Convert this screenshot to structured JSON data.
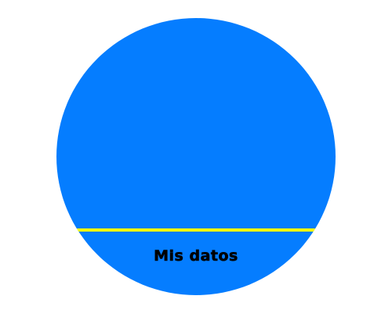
{
  "profile_button": {
    "label": "Mis datos",
    "fill_color": "#057dff",
    "divider_color": "#ffff00",
    "text_color": "#000000"
  }
}
